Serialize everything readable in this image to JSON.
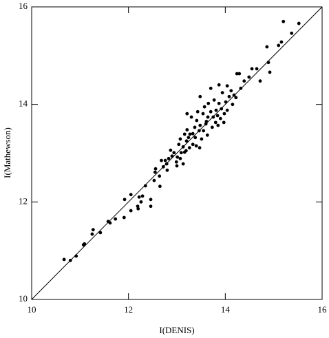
{
  "chart_data": {
    "type": "scatter",
    "xlabel": "I(DENIS)",
    "ylabel": "I(Mathewson)",
    "color": "#000000",
    "identity_line": true,
    "xlim": [
      10,
      16
    ],
    "ylim": [
      10,
      16
    ],
    "xticks": [
      10,
      12,
      14,
      16
    ],
    "yticks": [
      10,
      12,
      14,
      16
    ],
    "x": [
      10.67,
      10.8,
      10.92,
      11.07,
      11.09,
      11.27,
      11.25,
      11.42,
      11.58,
      11.62,
      11.73,
      11.91,
      11.92,
      12.05,
      12.05,
      12.19,
      12.2,
      12.22,
      12.29,
      12.26,
      12.35,
      12.46,
      12.46,
      12.55,
      12.53,
      12.56,
      12.64,
      12.65,
      12.68,
      12.72,
      12.76,
      12.79,
      12.8,
      12.83,
      12.87,
      12.94,
      12.99,
      13.0,
      13.01,
      13.04,
      13.07,
      13.09,
      13.13,
      13.13,
      13.16,
      13.19,
      13.2,
      13.21,
      13.24,
      13.26,
      13.27,
      13.21,
      13.3,
      13.33,
      13.37,
      13.38,
      13.41,
      13.43,
      13.46,
      13.48,
      13.51,
      13.54,
      13.55,
      13.57,
      13.6,
      13.63,
      13.64,
      13.65,
      13.7,
      13.73,
      13.77,
      13.8,
      13.81,
      13.84,
      13.87,
      13.9,
      13.92,
      13.94,
      13.98,
      14.01,
      14.04,
      14.08,
      14.12,
      14.18,
      14.24,
      14.29,
      14.32,
      14.39,
      14.49,
      14.55,
      14.65,
      14.72,
      14.89,
      14.92,
      14.86,
      15.1,
      15.16,
      15.2,
      15.37,
      15.52,
      13.48,
      13.7,
      13.87,
      12.9,
      13.07,
      13.16,
      13.33,
      13.4,
      13.47,
      13.61,
      13.75,
      13.85,
      13.97,
      14.04,
      14.15,
      14.22
    ],
    "y": [
      10.82,
      10.8,
      10.89,
      11.12,
      11.14,
      11.43,
      11.34,
      11.37,
      11.6,
      11.57,
      11.65,
      11.68,
      12.05,
      12.15,
      11.82,
      11.91,
      11.86,
      12.1,
      12.12,
      12.0,
      12.33,
      12.05,
      11.91,
      12.61,
      12.44,
      12.68,
      12.53,
      12.32,
      12.85,
      12.72,
      12.85,
      12.78,
      12.65,
      12.89,
      13.06,
      13.01,
      12.82,
      12.74,
      12.92,
      13.18,
      13.29,
      13.01,
      12.78,
      13.13,
      13.39,
      13.05,
      13.25,
      13.48,
      13.32,
      13.11,
      13.39,
      13.81,
      13.74,
      13.4,
      13.53,
      13.32,
      13.67,
      13.85,
      13.46,
      13.57,
      13.29,
      13.81,
      13.46,
      13.95,
      13.6,
      13.37,
      13.74,
      14.02,
      13.85,
      13.53,
      14.09,
      13.63,
      13.88,
      13.77,
      14.02,
      13.71,
      13.91,
      14.24,
      13.81,
      14.05,
      14.38,
      14.16,
      14.28,
      14.19,
      14.63,
      14.63,
      14.33,
      14.48,
      14.56,
      14.73,
      14.73,
      14.48,
      14.86,
      14.66,
      15.18,
      15.21,
      15.28,
      15.7,
      15.46,
      15.66,
      14.16,
      14.33,
      14.4,
      12.94,
      12.89,
      13.02,
      13.18,
      13.15,
      13.11,
      13.65,
      13.74,
      13.57,
      13.63,
      13.88,
      14.0,
      14.14
    ]
  }
}
